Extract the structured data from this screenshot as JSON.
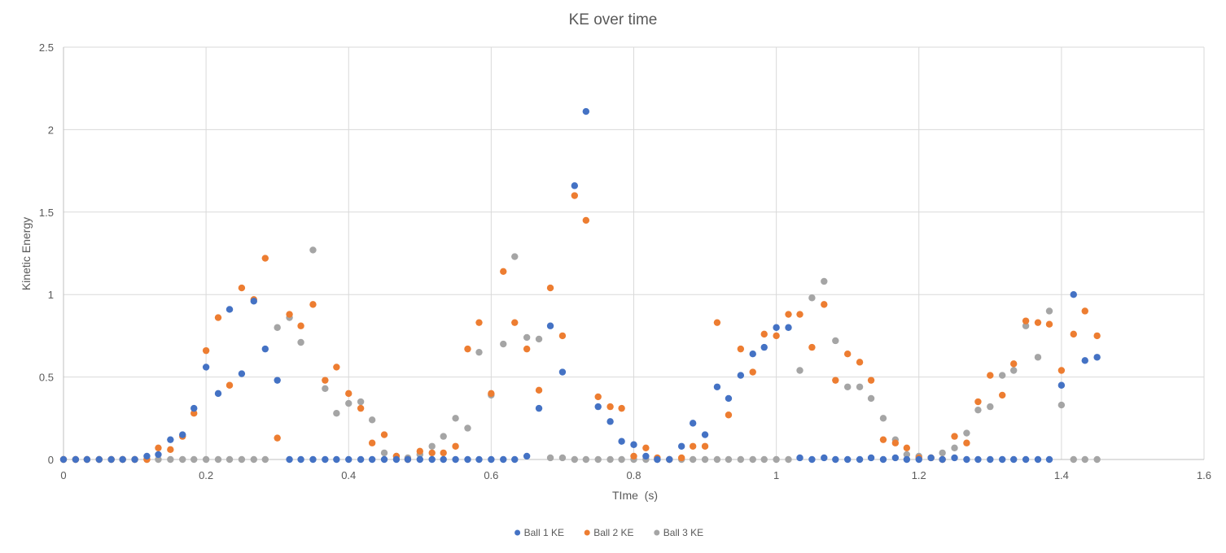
{
  "chart_data": {
    "type": "scatter",
    "title": "KE over time",
    "xlabel": "TIme  (s)",
    "ylabel": "Kinetic Energy",
    "xlim": [
      0,
      1.6
    ],
    "ylim": [
      0,
      2.5
    ],
    "xticks": [
      0,
      0.2,
      0.4,
      0.6,
      0.8,
      1,
      1.2,
      1.4,
      1.6
    ],
    "yticks": [
      0,
      0.5,
      1,
      1.5,
      2,
      2.5
    ],
    "xtick_labels": [
      "0",
      "0.2",
      "0.4",
      "0.6",
      "0.8",
      "1",
      "1.2",
      "1.4",
      "1.6"
    ],
    "ytick_labels": [
      "0",
      "0.5",
      "1",
      "1.5",
      "2",
      "2.5"
    ],
    "grid": "major vertical and horizontal",
    "legend_position": "bottom",
    "series": [
      {
        "name": "Ball 1 KE",
        "color": "#4472c4",
        "points": [
          [
            0,
            0
          ],
          [
            0.017,
            0
          ],
          [
            0.033,
            0
          ],
          [
            0.05,
            0
          ],
          [
            0.067,
            0
          ],
          [
            0.083,
            0
          ],
          [
            0.1,
            0
          ],
          [
            0.117,
            0.02
          ],
          [
            0.133,
            0.03
          ],
          [
            0.15,
            0.12
          ],
          [
            0.167,
            0.15
          ],
          [
            0.183,
            0.31
          ],
          [
            0.2,
            0.56
          ],
          [
            0.217,
            0.4
          ],
          [
            0.233,
            0.91
          ],
          [
            0.25,
            0.52
          ],
          [
            0.267,
            0.96
          ],
          [
            0.283,
            0.67
          ],
          [
            0.3,
            0.48
          ],
          [
            0.317,
            0
          ],
          [
            0.333,
            0
          ],
          [
            0.35,
            0
          ],
          [
            0.367,
            0
          ],
          [
            0.383,
            0
          ],
          [
            0.4,
            0
          ],
          [
            0.417,
            0
          ],
          [
            0.433,
            0
          ],
          [
            0.45,
            0
          ],
          [
            0.467,
            0
          ],
          [
            0.483,
            0
          ],
          [
            0.5,
            0
          ],
          [
            0.517,
            0
          ],
          [
            0.533,
            0
          ],
          [
            0.55,
            0
          ],
          [
            0.567,
            0
          ],
          [
            0.583,
            0
          ],
          [
            0.6,
            0
          ],
          [
            0.617,
            0
          ],
          [
            0.633,
            0
          ],
          [
            0.65,
            0.02
          ],
          [
            0.667,
            0.31
          ],
          [
            0.683,
            0.81
          ],
          [
            0.7,
            0.53
          ],
          [
            0.717,
            1.66
          ],
          [
            0.733,
            2.11
          ],
          [
            0.75,
            0.32
          ],
          [
            0.767,
            0.23
          ],
          [
            0.783,
            0.11
          ],
          [
            0.8,
            0.09
          ],
          [
            0.817,
            0.02
          ],
          [
            0.833,
            0
          ],
          [
            0.85,
            0
          ],
          [
            0.867,
            0.08
          ],
          [
            0.883,
            0.22
          ],
          [
            0.9,
            0.15
          ],
          [
            0.917,
            0.44
          ],
          [
            0.933,
            0.37
          ],
          [
            0.95,
            0.51
          ],
          [
            0.967,
            0.64
          ],
          [
            0.983,
            0.68
          ],
          [
            1.0,
            0.8
          ],
          [
            1.017,
            0.8
          ],
          [
            1.033,
            0.01
          ],
          [
            1.05,
            0
          ],
          [
            1.067,
            0.01
          ],
          [
            1.083,
            0
          ],
          [
            1.1,
            0
          ],
          [
            1.117,
            0
          ],
          [
            1.133,
            0.01
          ],
          [
            1.15,
            0
          ],
          [
            1.167,
            0.01
          ],
          [
            1.183,
            0
          ],
          [
            1.2,
            0
          ],
          [
            1.217,
            0.01
          ],
          [
            1.233,
            0
          ],
          [
            1.25,
            0.01
          ],
          [
            1.267,
            0
          ],
          [
            1.283,
            0
          ],
          [
            1.3,
            0
          ],
          [
            1.317,
            0
          ],
          [
            1.333,
            0
          ],
          [
            1.35,
            0
          ],
          [
            1.367,
            0
          ],
          [
            1.383,
            0
          ],
          [
            1.4,
            0.45
          ],
          [
            1.417,
            1.0
          ],
          [
            1.433,
            0.6
          ],
          [
            1.45,
            0.62
          ]
        ]
      },
      {
        "name": "Ball 2 KE",
        "color": "#ed7d31",
        "points": [
          [
            0,
            0
          ],
          [
            0.017,
            0
          ],
          [
            0.033,
            0
          ],
          [
            0.05,
            0
          ],
          [
            0.067,
            0
          ],
          [
            0.083,
            0
          ],
          [
            0.1,
            0
          ],
          [
            0.117,
            0
          ],
          [
            0.133,
            0.07
          ],
          [
            0.15,
            0.06
          ],
          [
            0.167,
            0.14
          ],
          [
            0.183,
            0.28
          ],
          [
            0.2,
            0.66
          ],
          [
            0.217,
            0.86
          ],
          [
            0.233,
            0.45
          ],
          [
            0.25,
            1.04
          ],
          [
            0.267,
            0.97
          ],
          [
            0.283,
            1.22
          ],
          [
            0.3,
            0.13
          ],
          [
            0.317,
            0.88
          ],
          [
            0.333,
            0.81
          ],
          [
            0.35,
            0.94
          ],
          [
            0.367,
            0.48
          ],
          [
            0.383,
            0.56
          ],
          [
            0.4,
            0.4
          ],
          [
            0.417,
            0.31
          ],
          [
            0.433,
            0.1
          ],
          [
            0.45,
            0.15
          ],
          [
            0.467,
            0.02
          ],
          [
            0.483,
            0
          ],
          [
            0.5,
            0.05
          ],
          [
            0.517,
            0.04
          ],
          [
            0.533,
            0.04
          ],
          [
            0.55,
            0.08
          ],
          [
            0.567,
            0.67
          ],
          [
            0.583,
            0.83
          ],
          [
            0.6,
            0.4
          ],
          [
            0.617,
            1.14
          ],
          [
            0.633,
            0.83
          ],
          [
            0.65,
            0.67
          ],
          [
            0.667,
            0.42
          ],
          [
            0.683,
            1.04
          ],
          [
            0.7,
            0.75
          ],
          [
            0.717,
            1.6
          ],
          [
            0.733,
            1.45
          ],
          [
            0.75,
            0.38
          ],
          [
            0.767,
            0.32
          ],
          [
            0.783,
            0.31
          ],
          [
            0.8,
            0.02
          ],
          [
            0.817,
            0.07
          ],
          [
            0.833,
            0.01
          ],
          [
            0.85,
            0
          ],
          [
            0.867,
            0.01
          ],
          [
            0.883,
            0.08
          ],
          [
            0.9,
            0.08
          ],
          [
            0.917,
            0.83
          ],
          [
            0.933,
            0.27
          ],
          [
            0.95,
            0.67
          ],
          [
            0.967,
            0.53
          ],
          [
            0.983,
            0.76
          ],
          [
            1.0,
            0.75
          ],
          [
            1.017,
            0.88
          ],
          [
            1.033,
            0.88
          ],
          [
            1.05,
            0.68
          ],
          [
            1.067,
            0.94
          ],
          [
            1.083,
            0.48
          ],
          [
            1.1,
            0.64
          ],
          [
            1.117,
            0.59
          ],
          [
            1.133,
            0.48
          ],
          [
            1.15,
            0.12
          ],
          [
            1.167,
            0.1
          ],
          [
            1.183,
            0.07
          ],
          [
            1.2,
            0.01
          ],
          [
            1.217,
            0.01
          ],
          [
            1.233,
            0
          ],
          [
            1.25,
            0.14
          ],
          [
            1.267,
            0.1
          ],
          [
            1.283,
            0.35
          ],
          [
            1.3,
            0.51
          ],
          [
            1.317,
            0.39
          ],
          [
            1.333,
            0.58
          ],
          [
            1.35,
            0.84
          ],
          [
            1.367,
            0.83
          ],
          [
            1.383,
            0.82
          ],
          [
            1.4,
            0.54
          ],
          [
            1.417,
            0.76
          ],
          [
            1.433,
            0.9
          ],
          [
            1.45,
            0.75
          ]
        ]
      },
      {
        "name": "Ball 3 KE",
        "color": "#a5a5a5",
        "points": [
          [
            0,
            0
          ],
          [
            0.017,
            0
          ],
          [
            0.033,
            0
          ],
          [
            0.05,
            0
          ],
          [
            0.067,
            0
          ],
          [
            0.083,
            0
          ],
          [
            0.1,
            0
          ],
          [
            0.117,
            0
          ],
          [
            0.133,
            0
          ],
          [
            0.15,
            0
          ],
          [
            0.167,
            0
          ],
          [
            0.183,
            0
          ],
          [
            0.2,
            0
          ],
          [
            0.217,
            0
          ],
          [
            0.233,
            0
          ],
          [
            0.25,
            0
          ],
          [
            0.267,
            0
          ],
          [
            0.283,
            0
          ],
          [
            0.3,
            0.8
          ],
          [
            0.317,
            0.86
          ],
          [
            0.333,
            0.71
          ],
          [
            0.35,
            1.27
          ],
          [
            0.367,
            0.43
          ],
          [
            0.383,
            0.28
          ],
          [
            0.4,
            0.34
          ],
          [
            0.417,
            0.35
          ],
          [
            0.433,
            0.24
          ],
          [
            0.45,
            0.04
          ],
          [
            0.467,
            0.02
          ],
          [
            0.483,
            0.01
          ],
          [
            0.5,
            0.03
          ],
          [
            0.517,
            0.08
          ],
          [
            0.533,
            0.14
          ],
          [
            0.55,
            0.25
          ],
          [
            0.567,
            0.19
          ],
          [
            0.583,
            0.65
          ],
          [
            0.6,
            0.39
          ],
          [
            0.617,
            0.7
          ],
          [
            0.633,
            1.23
          ],
          [
            0.65,
            0.74
          ],
          [
            0.667,
            0.73
          ],
          [
            0.683,
            0.01
          ],
          [
            0.7,
            0.01
          ],
          [
            0.717,
            0
          ],
          [
            0.733,
            0
          ],
          [
            0.75,
            0
          ],
          [
            0.767,
            0
          ],
          [
            0.783,
            0
          ],
          [
            0.8,
            0
          ],
          [
            0.817,
            0
          ],
          [
            0.833,
            0
          ],
          [
            0.85,
            0
          ],
          [
            0.867,
            0
          ],
          [
            0.883,
            0
          ],
          [
            0.9,
            0
          ],
          [
            0.917,
            0
          ],
          [
            0.933,
            0
          ],
          [
            0.95,
            0
          ],
          [
            0.967,
            0
          ],
          [
            0.983,
            0
          ],
          [
            1.0,
            0
          ],
          [
            1.017,
            0
          ],
          [
            1.033,
            0.54
          ],
          [
            1.05,
            0.98
          ],
          [
            1.067,
            1.08
          ],
          [
            1.083,
            0.72
          ],
          [
            1.1,
            0.44
          ],
          [
            1.117,
            0.44
          ],
          [
            1.133,
            0.37
          ],
          [
            1.15,
            0.25
          ],
          [
            1.167,
            0.12
          ],
          [
            1.183,
            0.03
          ],
          [
            1.2,
            0.02
          ],
          [
            1.217,
            0.01
          ],
          [
            1.233,
            0.04
          ],
          [
            1.25,
            0.07
          ],
          [
            1.267,
            0.16
          ],
          [
            1.283,
            0.3
          ],
          [
            1.3,
            0.32
          ],
          [
            1.317,
            0.51
          ],
          [
            1.333,
            0.54
          ],
          [
            1.35,
            0.81
          ],
          [
            1.367,
            0.62
          ],
          [
            1.383,
            0.9
          ],
          [
            1.4,
            0.33
          ],
          [
            1.417,
            0
          ],
          [
            1.433,
            0
          ],
          [
            1.45,
            0
          ]
        ]
      }
    ]
  }
}
